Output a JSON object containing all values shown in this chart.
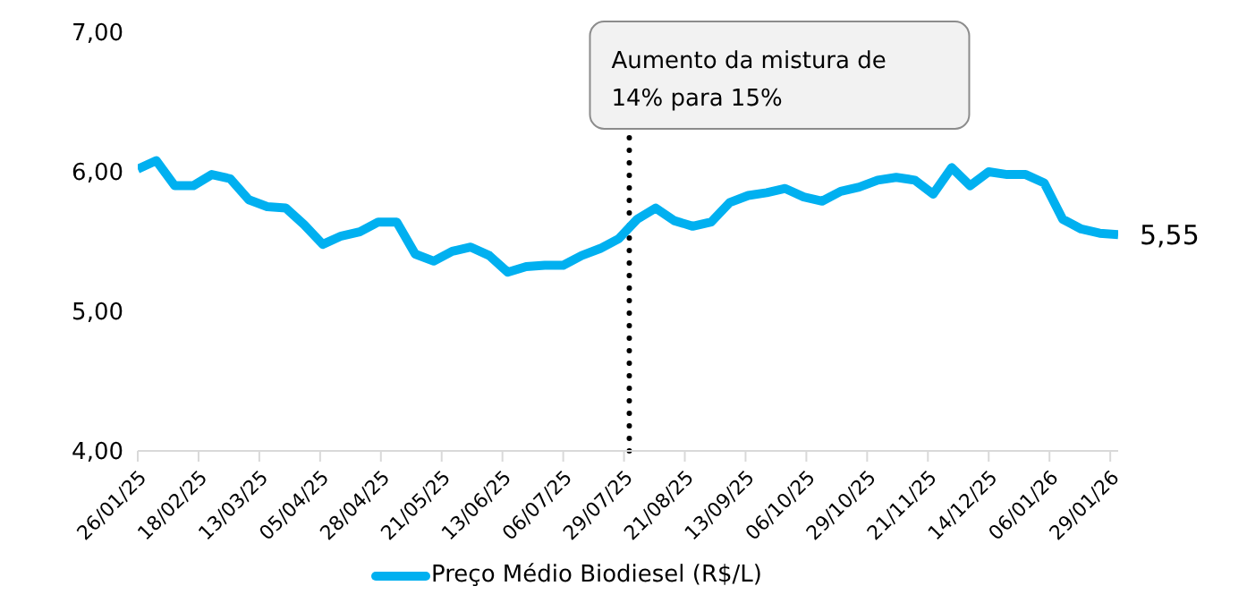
{
  "chart_data": {
    "type": "line",
    "x": [
      "2025-01-26",
      "2025-02-02",
      "2025-02-09",
      "2025-02-16",
      "2025-02-23",
      "2025-03-02",
      "2025-03-09",
      "2025-03-16",
      "2025-03-23",
      "2025-03-30",
      "2025-04-06",
      "2025-04-13",
      "2025-04-20",
      "2025-04-27",
      "2025-05-04",
      "2025-05-11",
      "2025-05-18",
      "2025-05-25",
      "2025-06-01",
      "2025-06-08",
      "2025-06-15",
      "2025-06-22",
      "2025-06-29",
      "2025-07-06",
      "2025-07-13",
      "2025-07-20",
      "2025-07-27",
      "2025-08-03",
      "2025-08-10",
      "2025-08-17",
      "2025-08-24",
      "2025-08-31",
      "2025-09-07",
      "2025-09-14",
      "2025-09-21",
      "2025-09-28",
      "2025-10-05",
      "2025-10-12",
      "2025-10-19",
      "2025-10-26",
      "2025-11-02",
      "2025-11-09",
      "2025-11-16",
      "2025-11-23",
      "2025-11-30",
      "2025-12-07",
      "2025-12-14",
      "2025-12-21",
      "2025-12-28",
      "2026-01-04",
      "2026-01-11",
      "2026-01-18",
      "2026-01-25",
      "2026-02-01"
    ],
    "series": [
      {
        "name": "Preço Médio Biodiesel (R$/L)",
        "color": "#00b0f0",
        "values": [
          6.02,
          6.08,
          5.9,
          5.9,
          5.98,
          5.95,
          5.8,
          5.75,
          5.74,
          5.62,
          5.48,
          5.54,
          5.57,
          5.64,
          5.64,
          5.41,
          5.36,
          5.43,
          5.46,
          5.4,
          5.28,
          5.32,
          5.33,
          5.33,
          5.4,
          5.45,
          5.52,
          5.66,
          5.74,
          5.65,
          5.61,
          5.64,
          5.78,
          5.83,
          5.85,
          5.88,
          5.82,
          5.79,
          5.86,
          5.89,
          5.94,
          5.96,
          5.94,
          5.84,
          6.03,
          5.9,
          6.0,
          5.98,
          5.98,
          5.92,
          5.66,
          5.59,
          5.56,
          5.55
        ],
        "value_labels": [
          null,
          null,
          null,
          null,
          null,
          null,
          null,
          null,
          null,
          null,
          null,
          null,
          null,
          null,
          null,
          null,
          null,
          null,
          null,
          null,
          null,
          null,
          null,
          null,
          null,
          null,
          null,
          null,
          null,
          null,
          null,
          null,
          null,
          null,
          null,
          null,
          null,
          null,
          null,
          null,
          null,
          null,
          null,
          null,
          null,
          null,
          null,
          null,
          null,
          null,
          null,
          null,
          null,
          "5,55"
        ]
      }
    ],
    "xlim": [
      "2025-01-26",
      "2026-02-01"
    ],
    "xticks": [
      {
        "value": "2025-01-26",
        "label": "26/01/25"
      },
      {
        "value": "2025-02-18",
        "label": "18/02/25"
      },
      {
        "value": "2025-03-13",
        "label": "13/03/25"
      },
      {
        "value": "2025-04-05",
        "label": "05/04/25"
      },
      {
        "value": "2025-04-28",
        "label": "28/04/25"
      },
      {
        "value": "2025-05-21",
        "label": "21/05/25"
      },
      {
        "value": "2025-06-13",
        "label": "13/06/25"
      },
      {
        "value": "2025-07-06",
        "label": "06/07/25"
      },
      {
        "value": "2025-07-29",
        "label": "29/07/25"
      },
      {
        "value": "2025-08-21",
        "label": "21/08/25"
      },
      {
        "value": "2025-09-13",
        "label": "13/09/25"
      },
      {
        "value": "2025-10-06",
        "label": "06/10/25"
      },
      {
        "value": "2025-10-29",
        "label": "29/10/25"
      },
      {
        "value": "2025-11-21",
        "label": "21/11/25"
      },
      {
        "value": "2025-12-14",
        "label": "14/12/25"
      },
      {
        "value": "2026-01-06",
        "label": "06/01/26"
      },
      {
        "value": "2026-01-29",
        "label": "29/01/26"
      }
    ],
    "ylim": [
      4,
      7
    ],
    "yticks": [
      {
        "value": 4,
        "label": "4,00"
      },
      {
        "value": 5,
        "label": "5,00"
      },
      {
        "value": 6,
        "label": "6,00"
      },
      {
        "value": 7,
        "label": "7,00"
      }
    ],
    "ref_lines": [
      {
        "axis": "x",
        "value": "2025-07-31",
        "label": "Aumento da mistura de 14% para 15%",
        "color": "#000000",
        "line_style": "dotted"
      }
    ],
    "grid": false,
    "legend": "bottom",
    "marker": "none",
    "line_style": "solid"
  }
}
